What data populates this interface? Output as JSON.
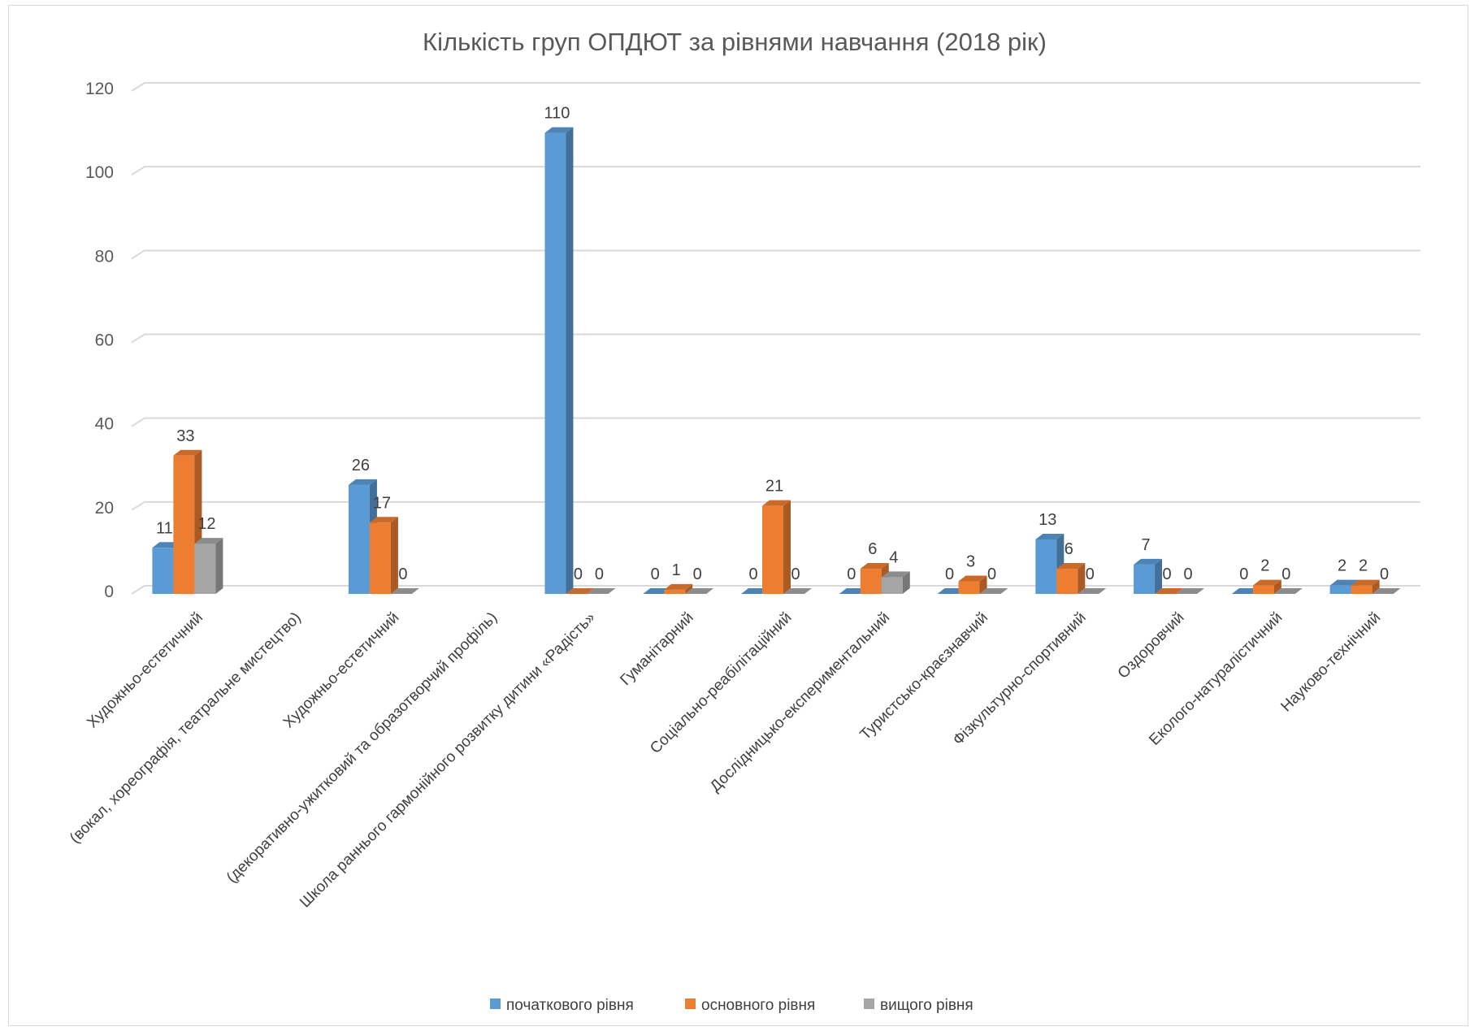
{
  "chart_data": {
    "type": "bar",
    "title": "Кількість груп ОПДЮТ за рівнями навчання (2018 рік)",
    "xlabel": "",
    "ylabel": "",
    "ylim": [
      0,
      120
    ],
    "yticks": [
      0,
      20,
      40,
      60,
      80,
      100,
      120
    ],
    "grid": true,
    "legend_position": "bottom",
    "categories": [
      "Художньо-естетичний",
      "(вокал, хореографія, театральне мистецтво)",
      "Художньо-естетичний",
      "(декоративно-ужитковий та образотворчий профіль)",
      "Школа раннього гармонійного розвитку дитини «Радість»",
      "Гуманітарний",
      "Соціально-реабілітаційний",
      "Дослідницько-експериментальний",
      "Туристсько-краєзнавчий",
      "Фізкультурно-спортивний",
      "Оздоровчий",
      "Еколого-натуралістичний",
      "Науково-технічний"
    ],
    "series": [
      {
        "name": "початкового рівня",
        "color": "#5b9bd5",
        "values": [
          11,
          null,
          26,
          null,
          110,
          0,
          0,
          0,
          0,
          13,
          7,
          0,
          2
        ]
      },
      {
        "name": "основного рівня",
        "color": "#ed7d31",
        "values": [
          33,
          null,
          17,
          null,
          0,
          1,
          21,
          6,
          3,
          6,
          0,
          2,
          2
        ]
      },
      {
        "name": "вищого рівня",
        "color": "#a5a5a5",
        "values": [
          12,
          null,
          0,
          null,
          0,
          0,
          0,
          4,
          0,
          0,
          0,
          0,
          0
        ]
      }
    ]
  }
}
